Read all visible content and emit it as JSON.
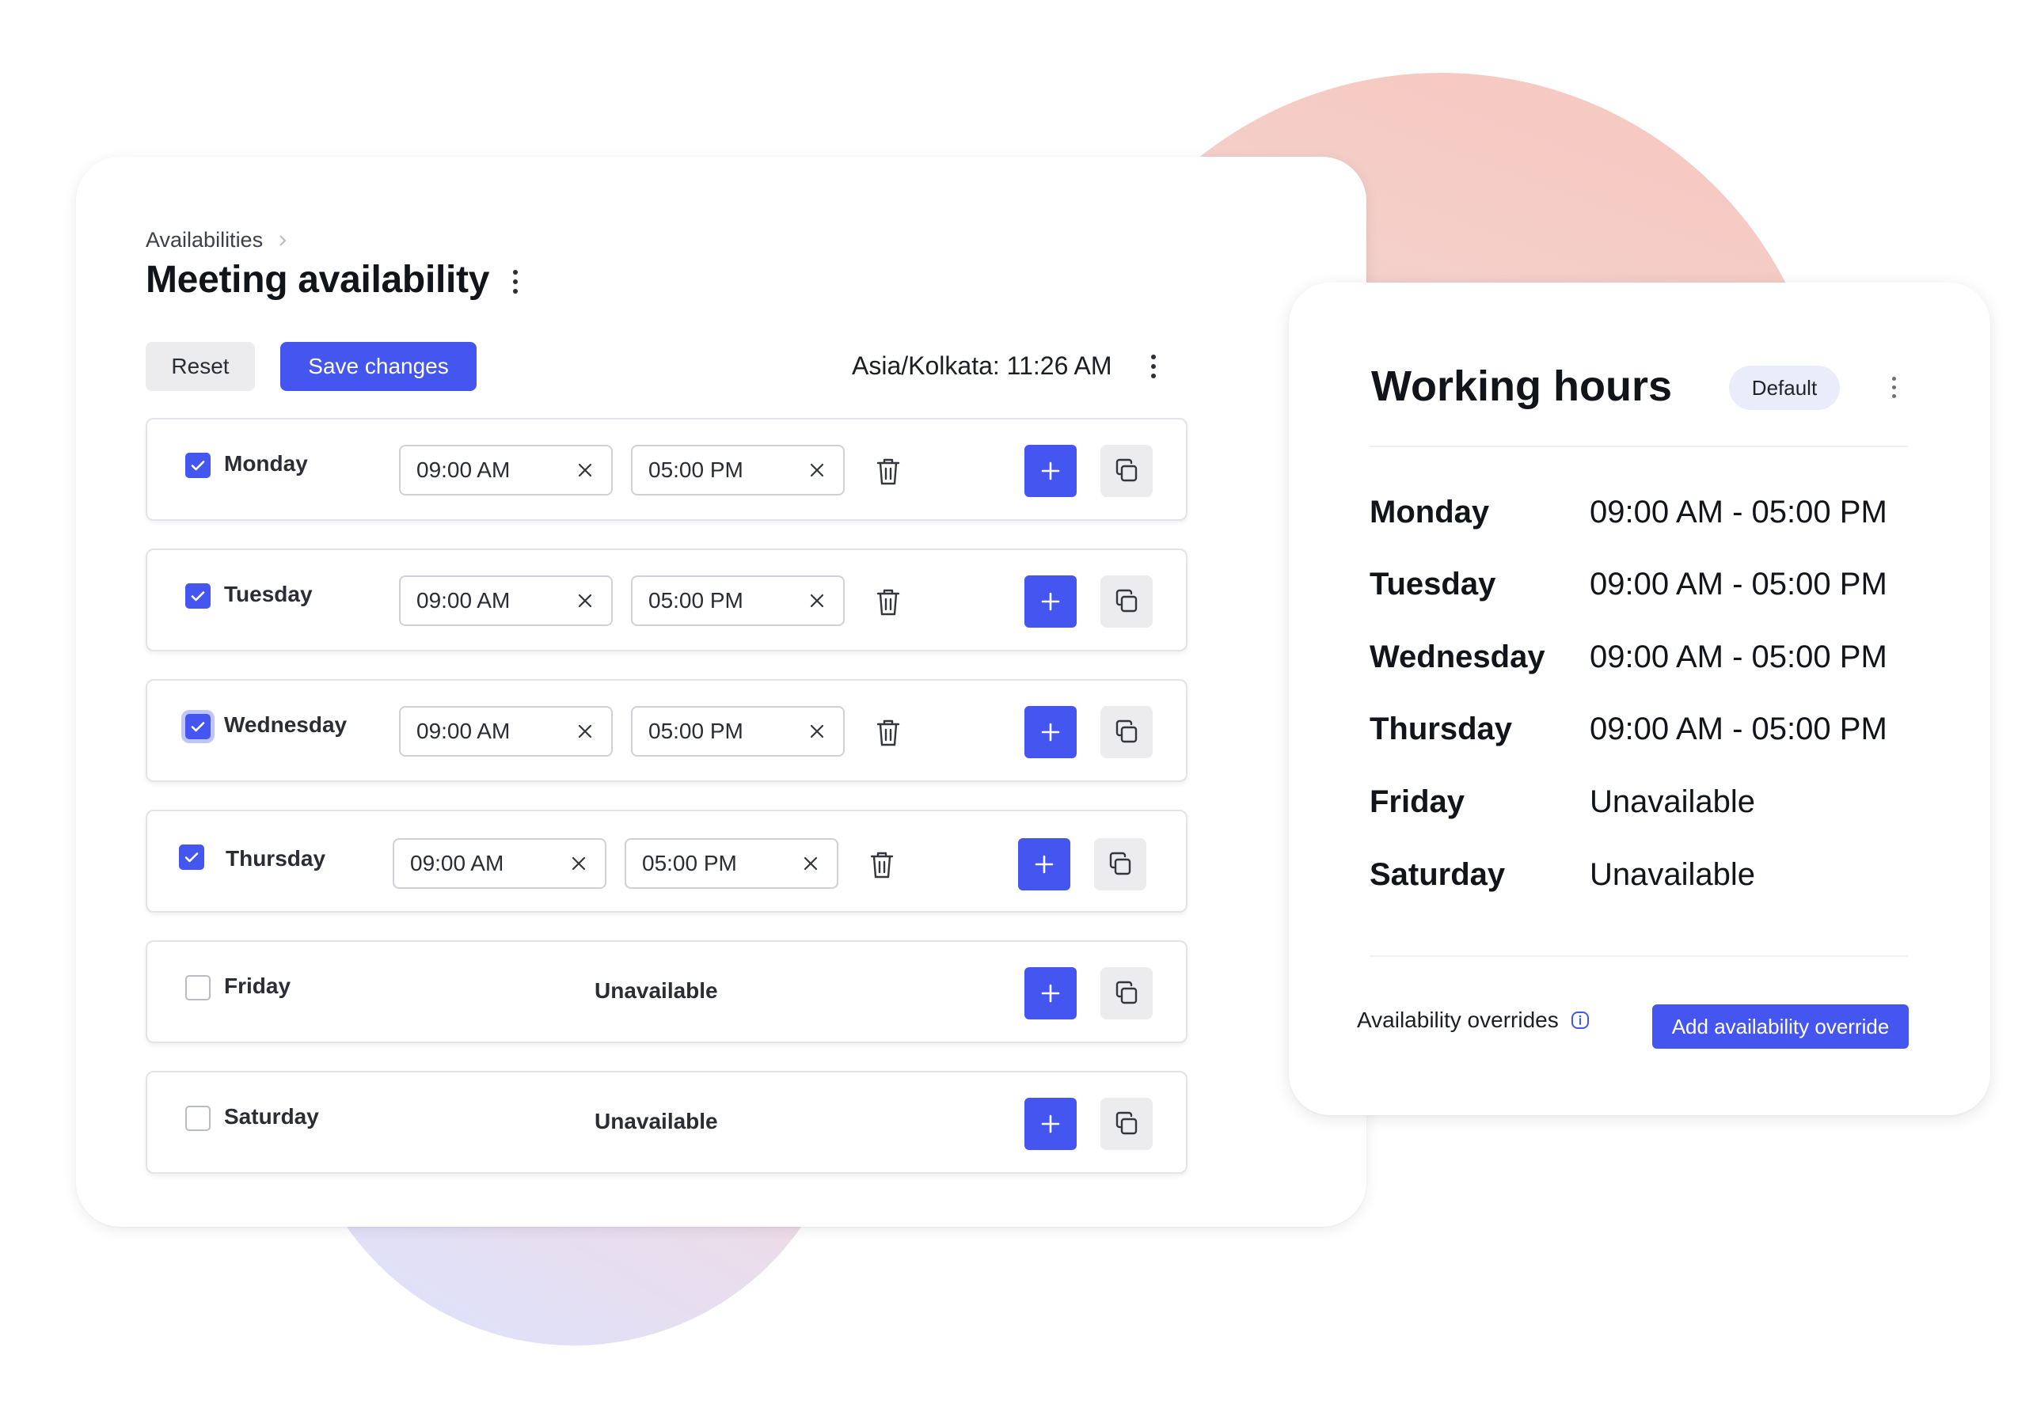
{
  "breadcrumb": {
    "parent": "Availabilities"
  },
  "page": {
    "title": "Meeting availability"
  },
  "toolbar": {
    "reset_label": "Reset",
    "save_label": "Save changes",
    "timezone": "Asia/Kolkata: 11:26 AM"
  },
  "days": [
    {
      "label": "Monday",
      "checked": true,
      "start": "09:00 AM",
      "end": "05:00 PM"
    },
    {
      "label": "Tuesday",
      "checked": true,
      "start": "09:00 AM",
      "end": "05:00 PM"
    },
    {
      "label": "Wednesday",
      "checked": true,
      "start": "09:00 AM",
      "end": "05:00 PM"
    },
    {
      "label": "Thursday",
      "checked": true,
      "start": "09:00 AM",
      "end": "05:00 PM"
    },
    {
      "label": "Friday",
      "checked": false,
      "status": "Unavailable"
    },
    {
      "label": "Saturday",
      "checked": false,
      "status": "Unavailable"
    }
  ],
  "side": {
    "title": "Working hours",
    "badge": "Default",
    "schedule": [
      {
        "day": "Monday",
        "hours": "09:00 AM - 05:00 PM"
      },
      {
        "day": "Tuesday",
        "hours": "09:00 AM - 05:00 PM"
      },
      {
        "day": "Wednesday",
        "hours": "09:00 AM - 05:00 PM"
      },
      {
        "day": "Thursday",
        "hours": "09:00 AM - 05:00 PM"
      },
      {
        "day": "Friday",
        "hours": "Unavailable"
      },
      {
        "day": "Saturday",
        "hours": "Unavailable"
      }
    ],
    "overrides_label": "Availability overrides",
    "overrides_button": "Add availability override"
  },
  "colors": {
    "accent": "#4556f0",
    "badge_bg": "#eaecf9"
  },
  "icons": [
    "chevron-right-icon",
    "kebab-icon",
    "checkbox-icon",
    "clear-icon",
    "trash-icon",
    "plus-icon",
    "copy-icon",
    "info-icon"
  ]
}
